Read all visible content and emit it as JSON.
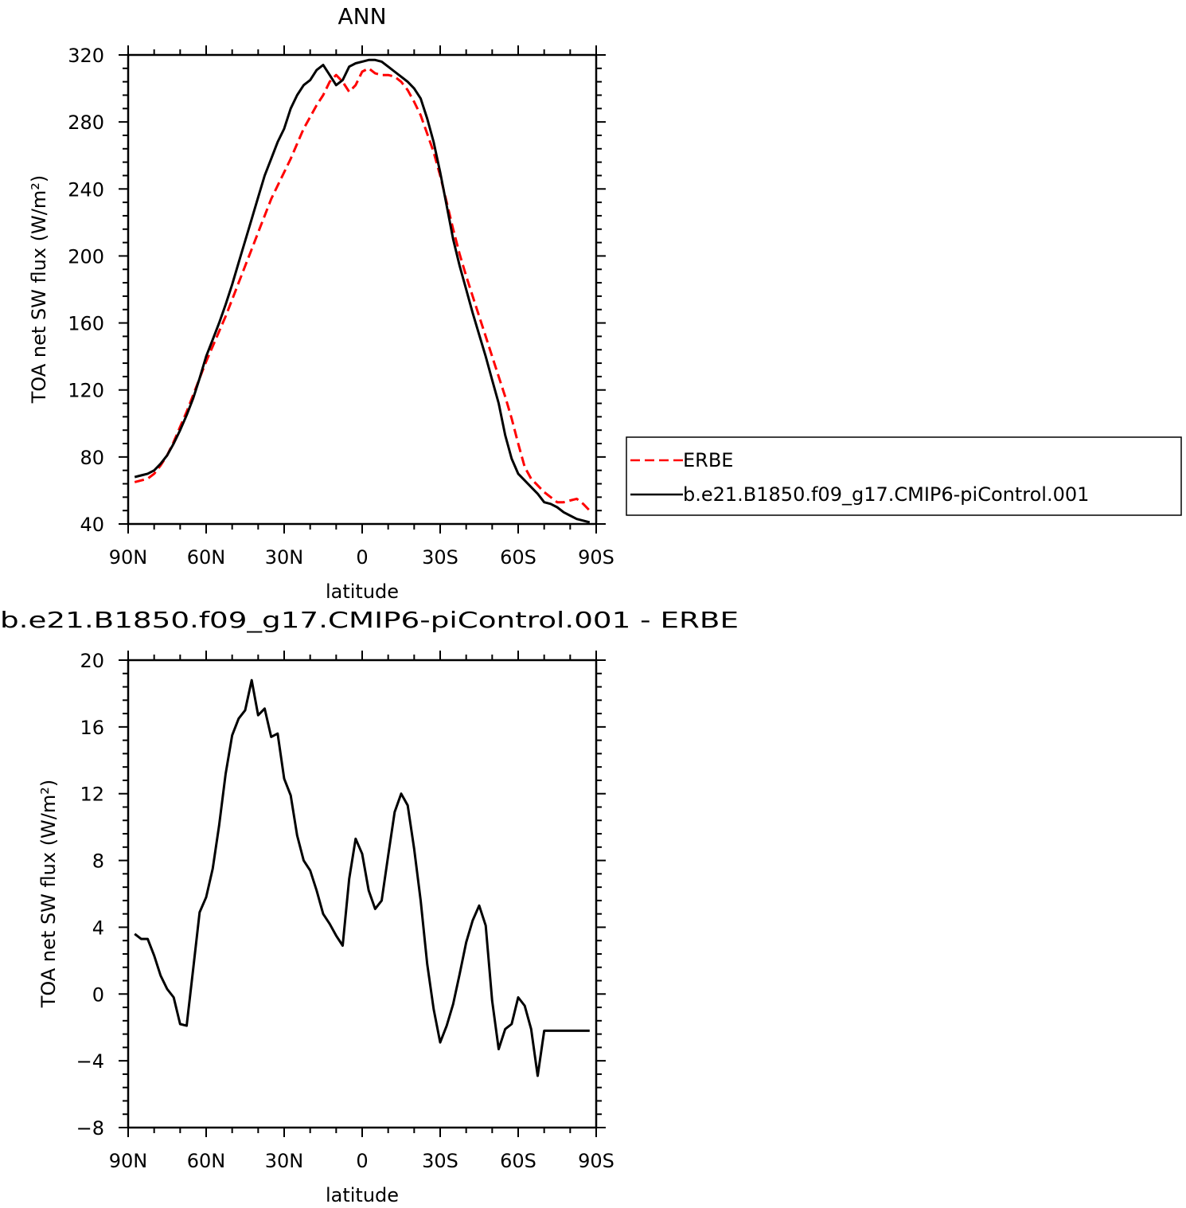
{
  "page_title": "ANN",
  "colors": {
    "observation": "#ff0000",
    "model": "#000000",
    "axes": "#000000",
    "background": "#ffffff"
  },
  "legend": {
    "placement": "right",
    "entries": [
      {
        "label": "ERBE",
        "color": "#ff0000",
        "dash": "dashed"
      },
      {
        "label": "b.e21.B1850.f09_g17.CMIP6-piControl.001",
        "color": "#000000",
        "dash": "solid"
      }
    ]
  },
  "chart_data": [
    {
      "type": "line",
      "title": "ANN",
      "xlabel": "latitude",
      "ylabel": "TOA net SW flux (W/m²)",
      "xlim": [
        90,
        -90
      ],
      "ylim": [
        40,
        320
      ],
      "xticks": [
        {
          "value": 90,
          "label": "90N"
        },
        {
          "value": 60,
          "label": "60N"
        },
        {
          "value": 30,
          "label": "30N"
        },
        {
          "value": 0,
          "label": "0"
        },
        {
          "value": -30,
          "label": "30S"
        },
        {
          "value": -60,
          "label": "60S"
        },
        {
          "value": -90,
          "label": "90S"
        }
      ],
      "yticks": [
        {
          "value": 40,
          "label": "40"
        },
        {
          "value": 80,
          "label": "80"
        },
        {
          "value": 120,
          "label": "120"
        },
        {
          "value": 160,
          "label": "160"
        },
        {
          "value": 200,
          "label": "200"
        },
        {
          "value": 240,
          "label": "240"
        },
        {
          "value": 280,
          "label": "280"
        },
        {
          "value": 320,
          "label": "320"
        }
      ],
      "series": [
        {
          "name": "ERBE",
          "color": "#ff0000",
          "dash": "dashed",
          "x": [
            87.5,
            85,
            82.5,
            80,
            77.5,
            75,
            72.5,
            70,
            67.5,
            65,
            62.5,
            60,
            57.5,
            55,
            52.5,
            50,
            47.5,
            45,
            42.5,
            40,
            37.5,
            35,
            32.5,
            30,
            27.5,
            25,
            22.5,
            20,
            17.5,
            15,
            12.5,
            10,
            7.5,
            5,
            2.5,
            0,
            -2.5,
            -5,
            -7.5,
            -10,
            -12.5,
            -15,
            -17.5,
            -20,
            -22.5,
            -25,
            -27.5,
            -30,
            -32.5,
            -35,
            -37.5,
            -40,
            -42.5,
            -45,
            -47.5,
            -50,
            -52.5,
            -55,
            -57.5,
            -60,
            -62.5,
            -65,
            -67.5,
            -70,
            -72.5,
            -75,
            -77.5,
            -80,
            -82.5,
            -85,
            -87.5
          ],
          "y": [
            65,
            66,
            67,
            70,
            75,
            81,
            89,
            98,
            107,
            117,
            127,
            137,
            146,
            155,
            164,
            174,
            184,
            194,
            204,
            214,
            224,
            234,
            242,
            250,
            258,
            267,
            276,
            283,
            290,
            296,
            304,
            308,
            304,
            298,
            302,
            310,
            312,
            309,
            308,
            308,
            307,
            304,
            299,
            292,
            284,
            273,
            262,
            248,
            232,
            216,
            201,
            188,
            176,
            164,
            152,
            140,
            128,
            116,
            103,
            88,
            74,
            67,
            63,
            59,
            56,
            53,
            53,
            54,
            55,
            52,
            48
          ]
        },
        {
          "name": "b.e21.B1850.f09_g17.CMIP6-piControl.001",
          "color": "#000000",
          "dash": "solid",
          "x": [
            87.5,
            85,
            82.5,
            80,
            77.5,
            75,
            72.5,
            70,
            67.5,
            65,
            62.5,
            60,
            57.5,
            55,
            52.5,
            50,
            47.5,
            45,
            42.5,
            40,
            37.5,
            35,
            32.5,
            30,
            27.5,
            25,
            22.5,
            20,
            17.5,
            15,
            12.5,
            10,
            7.5,
            5,
            2.5,
            0,
            -2.5,
            -5,
            -7.5,
            -10,
            -12.5,
            -15,
            -17.5,
            -20,
            -22.5,
            -25,
            -27.5,
            -30,
            -32.5,
            -35,
            -37.5,
            -40,
            -42.5,
            -45,
            -47.5,
            -50,
            -52.5,
            -55,
            -57.5,
            -60,
            -62.5,
            -65,
            -67.5,
            -70,
            -72.5,
            -75,
            -77.5,
            -80,
            -82.5,
            -85,
            -87.5
          ],
          "y": [
            68,
            69,
            70,
            72,
            76,
            81,
            88,
            96,
            105,
            115,
            127,
            140,
            150,
            160,
            171,
            183,
            196,
            209,
            222,
            235,
            248,
            258,
            268,
            276,
            288,
            296,
            302,
            305,
            311,
            314,
            308,
            302,
            305,
            313,
            315,
            316,
            317,
            317,
            316,
            313,
            310,
            307,
            304,
            300,
            294,
            282,
            268,
            250,
            230,
            210,
            194,
            180,
            166,
            153,
            140,
            126,
            112,
            93,
            79,
            70,
            66,
            62,
            58,
            53,
            52,
            50,
            47,
            45,
            43,
            42,
            41
          ]
        }
      ]
    },
    {
      "type": "line",
      "title": "b.e21.B1850.f09_g17.CMIP6-piControl.001 - ERBE",
      "xlabel": "latitude",
      "ylabel": "TOA net SW flux (W/m²)",
      "xlim": [
        90,
        -90
      ],
      "ylim": [
        -8,
        20
      ],
      "xticks": [
        {
          "value": 90,
          "label": "90N"
        },
        {
          "value": 60,
          "label": "60N"
        },
        {
          "value": 30,
          "label": "30N"
        },
        {
          "value": 0,
          "label": "0"
        },
        {
          "value": -30,
          "label": "30S"
        },
        {
          "value": -60,
          "label": "60S"
        },
        {
          "value": -90,
          "label": "90S"
        }
      ],
      "yticks": [
        {
          "value": -8,
          "label": "−8"
        },
        {
          "value": -4,
          "label": "−4"
        },
        {
          "value": 0,
          "label": "0"
        },
        {
          "value": 4,
          "label": "4"
        },
        {
          "value": 8,
          "label": "8"
        },
        {
          "value": 12,
          "label": "12"
        },
        {
          "value": 16,
          "label": "16"
        },
        {
          "value": 20,
          "label": "20"
        }
      ],
      "series": [
        {
          "color": "#000000",
          "dash": "solid",
          "x": [
            87.5,
            85,
            82.5,
            80,
            77.5,
            75,
            72.5,
            70,
            67.5,
            65,
            62.5,
            60,
            57.5,
            55,
            52.5,
            50,
            47.5,
            45,
            42.5,
            40,
            37.5,
            35,
            32.5,
            30,
            27.5,
            25,
            22.5,
            20,
            17.5,
            15,
            12.5,
            10,
            7.5,
            5,
            2.5,
            0,
            -2.5,
            -5,
            -7.5,
            -10,
            -12.5,
            -15,
            -17.5,
            -20,
            -22.5,
            -25,
            -27.5,
            -30,
            -32.5,
            -35,
            -37.5,
            -40,
            -42.5,
            -45,
            -47.5,
            -50,
            -52.5,
            -55,
            -57.5,
            -60,
            -62.5,
            -65,
            -67.5,
            -70,
            -72.5,
            -75,
            -77.5,
            -80,
            -82.5,
            -85,
            -87.5
          ],
          "y": [
            3.6,
            3.3,
            3.3,
            2.3,
            1.1,
            0.3,
            -0.2,
            -1.8,
            -1.9,
            1.5,
            4.9,
            5.8,
            7.5,
            10.1,
            13.2,
            15.5,
            16.5,
            17.0,
            18.8,
            16.7,
            17.1,
            15.4,
            15.6,
            12.9,
            11.9,
            9.5,
            8.0,
            7.4,
            6.2,
            4.8,
            4.2,
            3.5,
            2.9,
            6.9,
            9.3,
            8.4,
            6.2,
            5.1,
            5.6,
            8.3,
            10.9,
            12.0,
            11.3,
            8.7,
            5.6,
            1.8,
            -0.9,
            -2.9,
            -1.9,
            -0.6,
            1.2,
            3.1,
            4.4,
            5.3,
            4.1,
            -0.4,
            -3.3,
            -2.1,
            -1.8,
            -0.2,
            -0.7,
            -2.1,
            -4.9,
            -2.2,
            -2.2,
            -2.2,
            -2.2,
            -2.2,
            -2.2,
            -2.2,
            -2.2
          ]
        }
      ]
    }
  ]
}
